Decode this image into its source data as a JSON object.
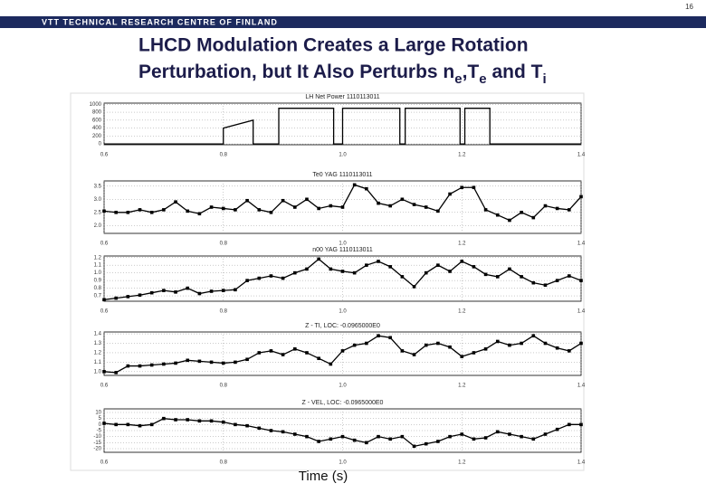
{
  "page_number": "16",
  "header": "VTT TECHNICAL RESEARCH CENTRE OF FINLAND",
  "title_line1": "LHCD Modulation Creates a Large Rotation",
  "title_line2": [
    {
      "text": "Perturbation, but It Also Perturbs n"
    },
    {
      "text": "e",
      "subscript": true
    },
    {
      "text": ",T"
    },
    {
      "text": "e",
      "subscript": true
    },
    {
      "text": " and T"
    },
    {
      "text": "i",
      "subscript": true
    }
  ],
  "xlabel": "Time (s)",
  "chart_data": [
    {
      "type": "line",
      "title": "LH Net Power 1110113011",
      "markers": false,
      "grid": true,
      "color": "#000000",
      "x": [
        0.6,
        0.8,
        0.8,
        0.85,
        0.85,
        0.893,
        0.893,
        0.985,
        0.985,
        1.0,
        1.0,
        1.096,
        1.096,
        1.105,
        1.105,
        1.197,
        1.197,
        1.205,
        1.205,
        1.247,
        1.247,
        1.4
      ],
      "values": [
        0,
        0,
        400,
        600,
        0,
        0,
        900,
        900,
        0,
        0,
        900,
        900,
        0,
        0,
        900,
        900,
        0,
        0,
        900,
        900,
        0,
        0
      ],
      "xlim": [
        0.6,
        1.4
      ],
      "xticks": [
        0.6,
        0.8,
        {
          "value": 1,
          "label": "1.0"
        },
        1.2,
        1.4
      ],
      "ylim": [
        -20,
        1030
      ],
      "yticks": [
        0,
        200,
        400,
        600,
        800,
        1000
      ]
    },
    {
      "type": "line",
      "title": "Te0 YAG 1110113011",
      "markers": true,
      "grid": true,
      "color": "#000000",
      "x": [
        0.6,
        0.62,
        0.64,
        0.66,
        0.68,
        0.7,
        0.72,
        0.74,
        0.76,
        0.78,
        0.8,
        0.82,
        0.84,
        0.86,
        0.88,
        0.9,
        0.92,
        0.94,
        0.96,
        0.98,
        1.0,
        1.02,
        1.04,
        1.06,
        1.08,
        1.1,
        1.12,
        1.14,
        1.16,
        1.18,
        1.2,
        1.22,
        1.24,
        1.26,
        1.28,
        1.3,
        1.32,
        1.34,
        1.36,
        1.38,
        1.4
      ],
      "values": [
        2.55,
        2.5,
        2.5,
        2.6,
        2.5,
        2.6,
        2.9,
        2.55,
        2.45,
        2.7,
        2.65,
        2.6,
        2.95,
        2.6,
        2.5,
        2.95,
        2.7,
        3.0,
        2.65,
        2.75,
        2.7,
        3.55,
        3.4,
        2.85,
        2.75,
        3.0,
        2.8,
        2.7,
        2.55,
        3.2,
        3.45,
        3.45,
        2.6,
        2.4,
        2.2,
        2.5,
        2.3,
        2.75,
        2.65,
        2.6,
        3.1
      ],
      "xlim": [
        0.6,
        1.4
      ],
      "xticks": [
        0.6,
        0.8,
        {
          "value": 1,
          "label": "1.0"
        },
        1.2,
        1.4
      ],
      "ylim": [
        1.7,
        3.7
      ],
      "yticks": [
        {
          "value": 2,
          "label": "2.0"
        },
        2.5,
        {
          "value": 3,
          "label": "3.0"
        },
        3.5
      ]
    },
    {
      "type": "line",
      "title": "n00 YAG 1110113011",
      "markers": true,
      "grid": true,
      "color": "#000000",
      "x": [
        0.6,
        0.62,
        0.64,
        0.66,
        0.68,
        0.7,
        0.72,
        0.74,
        0.76,
        0.78,
        0.8,
        0.82,
        0.84,
        0.86,
        0.88,
        0.9,
        0.92,
        0.94,
        0.96,
        0.98,
        1.0,
        1.02,
        1.04,
        1.06,
        1.08,
        1.1,
        1.12,
        1.14,
        1.16,
        1.18,
        1.2,
        1.22,
        1.24,
        1.26,
        1.28,
        1.3,
        1.32,
        1.34,
        1.36,
        1.38,
        1.4
      ],
      "values": [
        0.65,
        0.67,
        0.69,
        0.71,
        0.74,
        0.77,
        0.75,
        0.8,
        0.73,
        0.76,
        0.77,
        0.78,
        0.9,
        0.93,
        0.96,
        0.93,
        1.0,
        1.05,
        1.18,
        1.05,
        1.02,
        1.0,
        1.1,
        1.15,
        1.08,
        0.95,
        0.82,
        1.0,
        1.1,
        1.02,
        1.15,
        1.08,
        0.98,
        0.95,
        1.05,
        0.95,
        0.87,
        0.84,
        0.9,
        0.96,
        0.9
      ],
      "xlim": [
        0.6,
        1.4
      ],
      "xticks": [
        0.6,
        0.8,
        {
          "value": 1,
          "label": "1.0"
        },
        1.2,
        1.4
      ],
      "ylim": [
        0.63,
        1.22
      ],
      "yticks": [
        0.7,
        0.8,
        0.9,
        {
          "value": 1,
          "label": "1.0"
        },
        1.1,
        1.2
      ]
    },
    {
      "type": "line",
      "title": "Z - TI, LOC: -0.0965000E0",
      "markers": true,
      "grid": true,
      "color": "#000000",
      "x": [
        0.6,
        0.62,
        0.64,
        0.66,
        0.68,
        0.7,
        0.72,
        0.74,
        0.76,
        0.78,
        0.8,
        0.82,
        0.84,
        0.86,
        0.88,
        0.9,
        0.92,
        0.94,
        0.96,
        0.98,
        1.0,
        1.02,
        1.04,
        1.06,
        1.08,
        1.1,
        1.12,
        1.14,
        1.16,
        1.18,
        1.2,
        1.22,
        1.24,
        1.26,
        1.28,
        1.3,
        1.32,
        1.34,
        1.36,
        1.38,
        1.4
      ],
      "values": [
        1.0,
        0.99,
        1.06,
        1.06,
        1.07,
        1.08,
        1.09,
        1.12,
        1.11,
        1.1,
        1.09,
        1.1,
        1.13,
        1.2,
        1.22,
        1.18,
        1.24,
        1.2,
        1.14,
        1.08,
        1.22,
        1.28,
        1.3,
        1.38,
        1.36,
        1.22,
        1.18,
        1.28,
        1.3,
        1.26,
        1.16,
        1.2,
        1.24,
        1.32,
        1.28,
        1.3,
        1.38,
        1.3,
        1.25,
        1.22,
        1.3
      ],
      "xlim": [
        0.6,
        1.4
      ],
      "xticks": [
        0.6,
        0.8,
        {
          "value": 1,
          "label": "1.0"
        },
        1.2,
        1.4
      ],
      "ylim": [
        0.96,
        1.42
      ],
      "yticks": [
        {
          "value": 1,
          "label": "1.0"
        },
        1.1,
        1.2,
        1.3,
        1.4
      ]
    },
    {
      "type": "line",
      "title": "Z - VEL, LOC: -0.0965000E0",
      "markers": true,
      "grid": true,
      "color": "#000000",
      "x": [
        0.6,
        0.62,
        0.64,
        0.66,
        0.68,
        0.7,
        0.72,
        0.74,
        0.76,
        0.78,
        0.8,
        0.82,
        0.84,
        0.86,
        0.88,
        0.9,
        0.92,
        0.94,
        0.96,
        0.98,
        1.0,
        1.02,
        1.04,
        1.06,
        1.08,
        1.1,
        1.12,
        1.14,
        1.16,
        1.18,
        1.2,
        1.22,
        1.24,
        1.26,
        1.28,
        1.3,
        1.32,
        1.34,
        1.36,
        1.38,
        1.4
      ],
      "values": [
        1,
        0,
        0,
        -1,
        0,
        5,
        4,
        4,
        3,
        3,
        2,
        0,
        -1,
        -3,
        -5,
        -6,
        -8,
        -10,
        -14,
        -12,
        -10,
        -13,
        -15,
        -10,
        -12,
        -10,
        -18,
        -16,
        -14,
        -10,
        -8,
        -12,
        -11,
        -6,
        -8,
        -10,
        -12,
        -8,
        -4,
        0,
        0
      ],
      "xlim": [
        0.6,
        1.4
      ],
      "xticks": [
        0.6,
        0.8,
        {
          "value": 1,
          "label": "1.0"
        },
        1.2,
        1.4
      ],
      "ylim": [
        -23,
        13
      ],
      "yticks": [
        -20,
        -15,
        -10,
        -5,
        0,
        5,
        10
      ]
    }
  ]
}
